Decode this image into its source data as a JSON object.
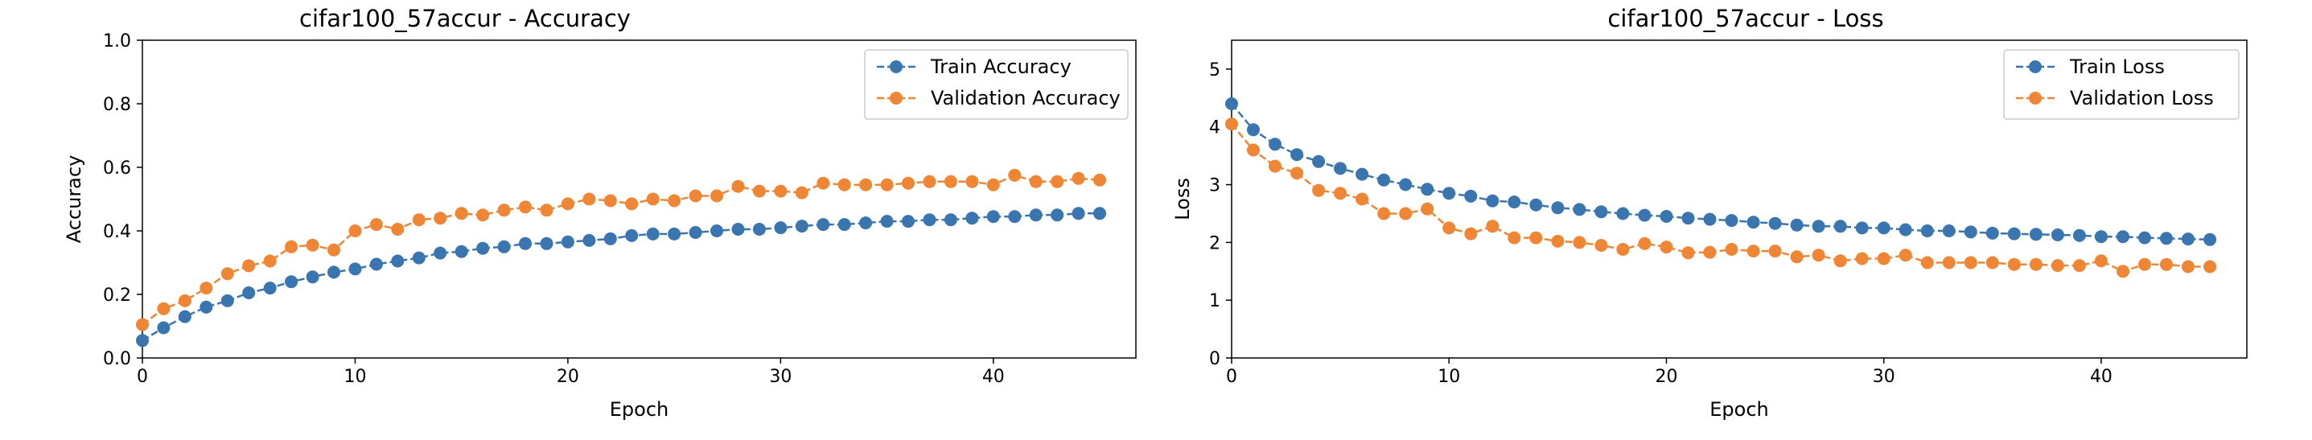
{
  "chart_data": [
    {
      "type": "line",
      "title": "cifar100_57accur - Accuracy",
      "xlabel": "Epoch",
      "ylabel": "Accuracy",
      "xlim": [
        0,
        46.7
      ],
      "ylim": [
        0,
        1.0
      ],
      "xticks": [
        0,
        10,
        20,
        30,
        40
      ],
      "yticks": [
        0.0,
        0.2,
        0.4,
        0.6,
        0.8,
        1.0
      ],
      "ytick_labels": [
        "0.0",
        "0.2",
        "0.4",
        "0.6",
        "0.8",
        "1.0"
      ],
      "legend_position": "top-right",
      "grid": false,
      "series": [
        {
          "name": "Train Accuracy",
          "color": "#3b75af",
          "x": [
            0,
            1,
            2,
            3,
            4,
            5,
            6,
            7,
            8,
            9,
            10,
            11,
            12,
            13,
            14,
            15,
            16,
            17,
            18,
            19,
            20,
            21,
            22,
            23,
            24,
            25,
            26,
            27,
            28,
            29,
            30,
            31,
            32,
            33,
            34,
            35,
            36,
            37,
            38,
            39,
            40,
            41,
            42,
            43,
            44,
            45
          ],
          "values": [
            0.055,
            0.095,
            0.13,
            0.16,
            0.18,
            0.205,
            0.22,
            0.24,
            0.255,
            0.27,
            0.28,
            0.295,
            0.305,
            0.315,
            0.33,
            0.335,
            0.345,
            0.35,
            0.36,
            0.36,
            0.365,
            0.37,
            0.375,
            0.385,
            0.39,
            0.39,
            0.395,
            0.4,
            0.405,
            0.405,
            0.41,
            0.415,
            0.42,
            0.42,
            0.425,
            0.43,
            0.43,
            0.435,
            0.435,
            0.44,
            0.445,
            0.445,
            0.45,
            0.45,
            0.455,
            0.455
          ]
        },
        {
          "name": "Validation Accuracy",
          "color": "#ef8636",
          "x": [
            0,
            1,
            2,
            3,
            4,
            5,
            6,
            7,
            8,
            9,
            10,
            11,
            12,
            13,
            14,
            15,
            16,
            17,
            18,
            19,
            20,
            21,
            22,
            23,
            24,
            25,
            26,
            27,
            28,
            29,
            30,
            31,
            32,
            33,
            34,
            35,
            36,
            37,
            38,
            39,
            40,
            41,
            42,
            43,
            44,
            45
          ],
          "values": [
            0.105,
            0.155,
            0.18,
            0.22,
            0.265,
            0.29,
            0.305,
            0.35,
            0.355,
            0.34,
            0.4,
            0.42,
            0.405,
            0.435,
            0.44,
            0.455,
            0.45,
            0.465,
            0.475,
            0.465,
            0.485,
            0.5,
            0.495,
            0.485,
            0.5,
            0.495,
            0.51,
            0.51,
            0.54,
            0.525,
            0.525,
            0.52,
            0.55,
            0.545,
            0.545,
            0.545,
            0.55,
            0.555,
            0.555,
            0.555,
            0.545,
            0.575,
            0.555,
            0.555,
            0.565,
            0.56
          ]
        }
      ]
    },
    {
      "type": "line",
      "title": "cifar100_57accur - Loss",
      "xlabel": "Epoch",
      "ylabel": "Loss",
      "xlim": [
        0,
        46.7
      ],
      "ylim": [
        0,
        5.5
      ],
      "xticks": [
        0,
        10,
        20,
        30,
        40
      ],
      "yticks": [
        0,
        1,
        2,
        3,
        4,
        5
      ],
      "ytick_labels": [
        "0",
        "1",
        "2",
        "3",
        "4",
        "5"
      ],
      "legend_position": "top-right",
      "grid": false,
      "series": [
        {
          "name": "Train Loss",
          "color": "#3b75af",
          "x": [
            0,
            1,
            2,
            3,
            4,
            5,
            6,
            7,
            8,
            9,
            10,
            11,
            12,
            13,
            14,
            15,
            16,
            17,
            18,
            19,
            20,
            21,
            22,
            23,
            24,
            25,
            26,
            27,
            28,
            29,
            30,
            31,
            32,
            33,
            34,
            35,
            36,
            37,
            38,
            39,
            40,
            41,
            42,
            43,
            44,
            45
          ],
          "values": [
            4.4,
            3.95,
            3.7,
            3.52,
            3.4,
            3.28,
            3.18,
            3.08,
            3.0,
            2.92,
            2.85,
            2.8,
            2.72,
            2.7,
            2.65,
            2.6,
            2.57,
            2.53,
            2.5,
            2.47,
            2.45,
            2.42,
            2.4,
            2.38,
            2.35,
            2.33,
            2.3,
            2.28,
            2.28,
            2.25,
            2.25,
            2.22,
            2.2,
            2.2,
            2.18,
            2.16,
            2.15,
            2.14,
            2.13,
            2.12,
            2.1,
            2.1,
            2.08,
            2.07,
            2.06,
            2.05
          ]
        },
        {
          "name": "Validation Loss",
          "color": "#ef8636",
          "x": [
            0,
            1,
            2,
            3,
            4,
            5,
            6,
            7,
            8,
            9,
            10,
            11,
            12,
            13,
            14,
            15,
            16,
            17,
            18,
            19,
            20,
            21,
            22,
            23,
            24,
            25,
            26,
            27,
            28,
            29,
            30,
            31,
            32,
            33,
            34,
            35,
            36,
            37,
            38,
            39,
            40,
            41,
            42,
            43,
            44,
            45
          ],
          "values": [
            4.05,
            3.6,
            3.32,
            3.2,
            2.9,
            2.85,
            2.75,
            2.5,
            2.5,
            2.58,
            2.25,
            2.15,
            2.28,
            2.08,
            2.08,
            2.02,
            2.0,
            1.95,
            1.88,
            1.98,
            1.92,
            1.82,
            1.83,
            1.88,
            1.85,
            1.85,
            1.75,
            1.78,
            1.68,
            1.72,
            1.72,
            1.78,
            1.65,
            1.65,
            1.65,
            1.65,
            1.62,
            1.62,
            1.6,
            1.6,
            1.68,
            1.5,
            1.62,
            1.62,
            1.58,
            1.58
          ]
        }
      ]
    }
  ]
}
